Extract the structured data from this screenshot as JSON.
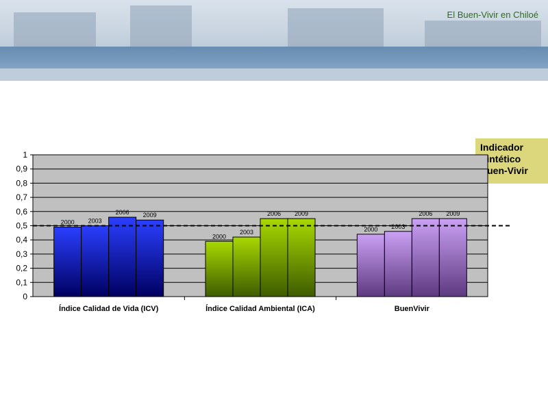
{
  "header": {
    "title": "El Buen-Vivir en Chiloé"
  },
  "legend": {
    "lines": [
      "Indicador",
      "Sintético",
      "Buen-Vivir"
    ]
  },
  "chart_data": {
    "type": "bar",
    "categories": [
      "Índice Calidad de Vida (ICV)",
      "Índice Calidad Ambiental (ICA)",
      "BuenVivir"
    ],
    "years": [
      "2000",
      "2003",
      "2006",
      "2009"
    ],
    "values": [
      [
        0.49,
        0.5,
        0.56,
        0.54
      ],
      [
        0.39,
        0.42,
        0.55,
        0.55
      ],
      [
        0.44,
        0.46,
        0.55,
        0.55
      ]
    ],
    "ylim": [
      0,
      1
    ],
    "yticks": [
      "0",
      "0,1",
      "0,2",
      "0,3",
      "0,4",
      "0,5",
      "0,6",
      "0,7",
      "0,8",
      "0,9",
      "1"
    ],
    "reference_line": 0.5,
    "grid": true,
    "colors": {
      "group1": [
        "#2a3fff",
        "#000060"
      ],
      "group2": [
        "#a8d800",
        "#3e5c00"
      ],
      "group3": [
        "#caa0f4",
        "#5e3a80"
      ],
      "plot_bg": "#c0c0c0"
    }
  }
}
